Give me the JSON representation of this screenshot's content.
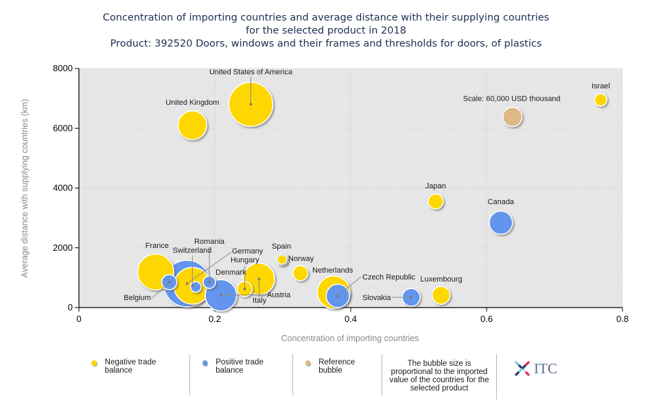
{
  "title": {
    "line1": "Concentration of importing countries and average distance with their supplying countries",
    "line2": "for the selected product in 2018",
    "line3": "Product: 392520 Doors, windows and their frames and thresholds for doors, of plastics"
  },
  "colors": {
    "negative": "#ffd700",
    "positive": "#6495ed",
    "reference": "#deb887",
    "plot_bg": "#e6e6e6"
  },
  "legend": {
    "negative": "Negative trade balance",
    "positive": "Positive trade balance",
    "reference": "Reference bubble",
    "note": "The bubble size is proportional to the imported value of the countries for the selected product",
    "logo": "ITC"
  },
  "chart_data": {
    "type": "scatter",
    "subtype": "bubble",
    "title": "Concentration of importing countries and average distance with their supplying countries for the selected product in 2018",
    "xlabel": "Concentration of importing countries",
    "ylabel": "Average distance with supplying countries (km)",
    "xlim": [
      0,
      0.8
    ],
    "ylim": [
      0,
      8000
    ],
    "xticks": [
      "0",
      "0.2",
      "0.4",
      "0.6",
      "0.8"
    ],
    "xtick_values": [
      0,
      0.2,
      0.4,
      0.6,
      0.8
    ],
    "yticks": [
      "0",
      "2000",
      "4000",
      "6000",
      "8000"
    ],
    "ytick_values": [
      0,
      2000,
      4000,
      6000,
      8000
    ],
    "grid": true,
    "size_unit": "USD thousand",
    "reference_value": 60000,
    "points": [
      {
        "name": "Germany",
        "x": 0.159,
        "y": 800,
        "size": 355000,
        "balance": "positive"
      },
      {
        "name": "United States of America",
        "x": 0.253,
        "y": 6800,
        "size": 315000,
        "balance": "negative"
      },
      {
        "name": "France",
        "x": 0.113,
        "y": 1190,
        "size": 210000,
        "balance": "negative"
      },
      {
        "name": "Switzerland",
        "x": 0.167,
        "y": 730,
        "size": 220000,
        "balance": "negative"
      },
      {
        "name": "",
        "x": 0.375,
        "y": 510,
        "size": 175000,
        "balance": "negative"
      },
      {
        "name": "Austria",
        "x": 0.209,
        "y": 410,
        "size": 160000,
        "balance": "positive"
      },
      {
        "name": "Italy",
        "x": 0.265,
        "y": 960,
        "size": 160000,
        "balance": "negative"
      },
      {
        "name": "United Kingdom",
        "x": 0.167,
        "y": 6100,
        "size": 135000,
        "balance": "negative"
      },
      {
        "name": "Czech Republic",
        "x": 0.381,
        "y": 390,
        "size": 88000,
        "balance": "positive"
      },
      {
        "name": "Canada",
        "x": 0.621,
        "y": 2840,
        "size": 88000,
        "balance": "positive"
      },
      {
        "name": "Slovakia",
        "x": 0.489,
        "y": 340,
        "size": 52000,
        "balance": "positive"
      },
      {
        "name": "Luxembourg",
        "x": 0.533,
        "y": 410,
        "size": 52000,
        "balance": "negative"
      },
      {
        "name": "Belgium",
        "x": 0.133,
        "y": 850,
        "size": 37000,
        "balance": "positive"
      },
      {
        "name": "Japan",
        "x": 0.525,
        "y": 3550,
        "size": 37000,
        "balance": "negative"
      },
      {
        "name": "Netherlands",
        "x": 0.326,
        "y": 1150,
        "size": 37000,
        "balance": "negative"
      },
      {
        "name": "Hungary",
        "x": 0.244,
        "y": 620,
        "size": 37000,
        "balance": "negative"
      },
      {
        "name": "Romania",
        "x": 0.192,
        "y": 850,
        "size": 25000,
        "balance": "positive"
      },
      {
        "name": "Spain",
        "x": 0.299,
        "y": 1610,
        "size": 15000,
        "balance": "negative"
      },
      {
        "name": "Norway",
        "x": 0.299,
        "y": 1610,
        "size": 25000,
        "balance": "positive"
      },
      {
        "name": "Israel",
        "x": 0.768,
        "y": 6950,
        "size": 25000,
        "balance": "negative"
      },
      {
        "name": "Denmark",
        "x": 0.172,
        "y": 690,
        "size": 18000,
        "balance": "positive"
      },
      {
        "name": "Scale: 60,000 USD thousand",
        "x": 0.638,
        "y": 6380,
        "size": 60000,
        "balance": "reference"
      }
    ]
  }
}
